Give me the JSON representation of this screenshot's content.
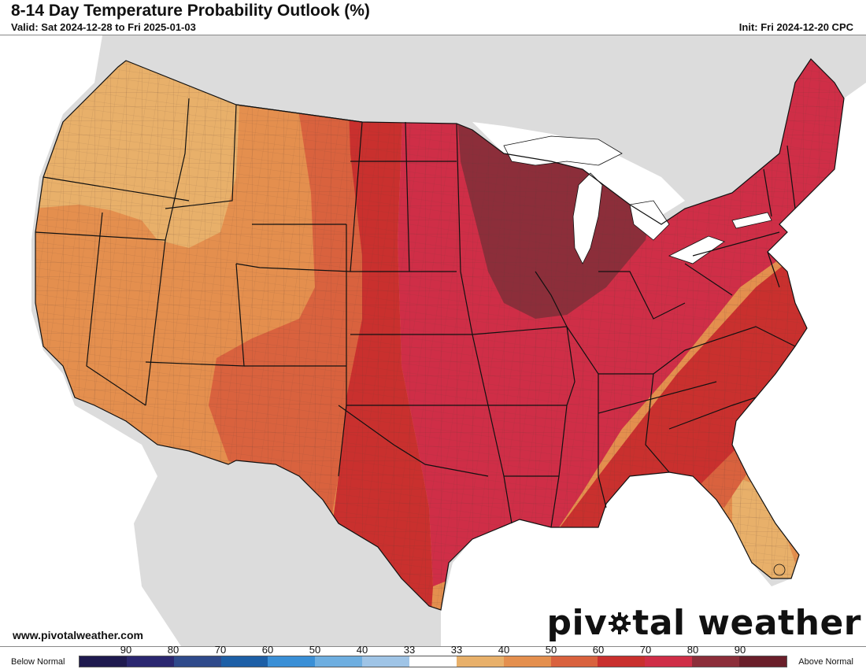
{
  "header": {
    "title": "8-14 Day Temperature Probability Outlook (%)",
    "valid": "Valid: Sat 2024-12-28 to Fri 2025-01-03",
    "init": "Init: Fri 2024-12-20 CPC"
  },
  "footer": {
    "website": "www.pivotalweather.com",
    "brand_before": "piv",
    "brand_after": "tal weather"
  },
  "legend": {
    "below_label": "Below Normal",
    "above_label": "Above Normal",
    "ticks": [
      "90",
      "80",
      "70",
      "60",
      "50",
      "40",
      "33",
      "33",
      "40",
      "50",
      "60",
      "70",
      "80",
      "90"
    ],
    "colors": [
      "#1f1a4f",
      "#2b2770",
      "#2f4a8b",
      "#1d5fa6",
      "#3a8fd6",
      "#6eaee0",
      "#9fc4e6",
      "#ffffff",
      "#e8b06a",
      "#e48f4e",
      "#d9623e",
      "#c9302e",
      "#cf2e47",
      "#8c2e3a",
      "#6a1f2a"
    ]
  },
  "map": {
    "colors": {
      "background_land": "#dcdcdc",
      "water": "#ffffff",
      "outline": "#111111",
      "county_lines": "#5a3a32"
    },
    "categories": [
      {
        "probability": "33-40",
        "side": "above",
        "color": "#e8b06a"
      },
      {
        "probability": "40-50",
        "side": "above",
        "color": "#e48f4e"
      },
      {
        "probability": "50-60",
        "side": "above",
        "color": "#d9623e"
      },
      {
        "probability": "60-70",
        "side": "above",
        "color": "#c9302e"
      },
      {
        "probability": "70-80",
        "side": "above",
        "color": "#cf2e47"
      },
      {
        "probability": "80-90",
        "side": "above",
        "color": "#8c2e3a"
      }
    ]
  }
}
